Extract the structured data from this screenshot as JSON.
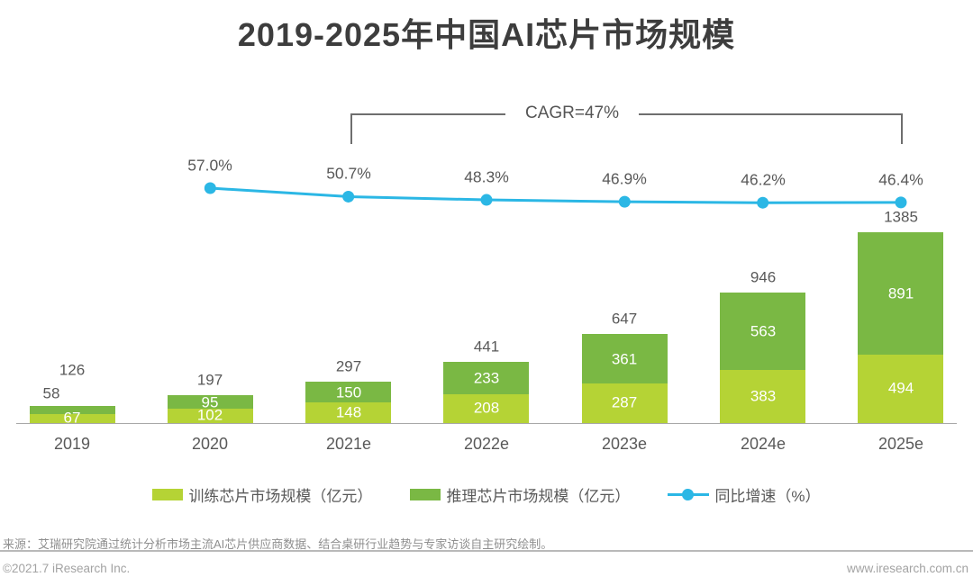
{
  "title": "2019-2025年中国AI芯片市场规模",
  "chart_data": {
    "type": "bar",
    "subtype": "stacked-bar-with-line",
    "title": "2019-2025年中国AI芯片市场规模",
    "categories": [
      "2019",
      "2020",
      "2021e",
      "2022e",
      "2023e",
      "2024e",
      "2025e"
    ],
    "series": [
      {
        "name": "训练芯片市场规模（亿元）",
        "type": "bar",
        "stack_order": "bottom",
        "color": "#b5d335",
        "values": [
          67,
          102,
          148,
          208,
          287,
          383,
          494
        ]
      },
      {
        "name": "推理芯片市场规模（亿元）",
        "type": "bar",
        "stack_order": "top",
        "color": "#7ab844",
        "values": [
          58,
          95,
          150,
          233,
          361,
          563,
          891
        ]
      },
      {
        "name": "同比增速（%）",
        "type": "line",
        "color": "#2bb7e5",
        "values": [
          null,
          57.0,
          50.7,
          48.3,
          46.9,
          46.2,
          46.4
        ],
        "labels": [
          "",
          "57.0%",
          "50.7%",
          "48.3%",
          "46.9%",
          "46.2%",
          "46.4%"
        ]
      }
    ],
    "totals": [
      126,
      197,
      297,
      441,
      647,
      946,
      1385
    ],
    "annotation": {
      "text": "CAGR=47%",
      "from_category": "2021e",
      "to_category": "2025e"
    },
    "label_overrides": [
      {
        "category_index": 0,
        "series": "推理芯片市场规模（亿元）",
        "placement": "outside-above-left"
      }
    ],
    "value_labels_inside_color": "#ffffff",
    "legend_position": "bottom",
    "grid": false,
    "y_axis_visible": false,
    "xlabel": "",
    "ylabel": ""
  },
  "colors": {
    "train": "#b5d335",
    "infer": "#7ab844",
    "line": "#2bb7e5",
    "axis": "#a8a8a8",
    "text": "#595959",
    "bracket": "#6e6e6e"
  },
  "footer": {
    "source": "来源：艾瑞研究院通过统计分析市场主流AI芯片供应商数据、结合桌研行业趋势与专家访谈自主研究绘制。",
    "copyright": "©2021.7 iResearch Inc.",
    "website": "www.iresearch.com.cn"
  }
}
